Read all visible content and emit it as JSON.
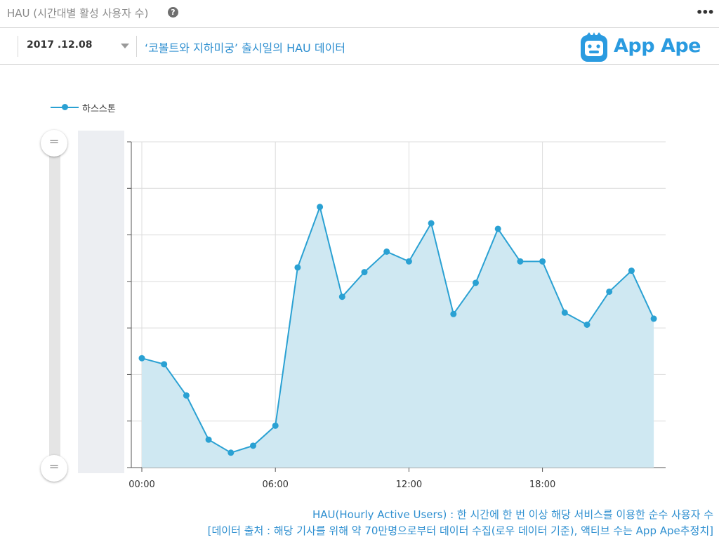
{
  "header": {
    "title": "HAU (시간대별 활성 사용자 수)",
    "help_icon": "question-icon",
    "more_icon": "more-dots-icon"
  },
  "toolbar": {
    "date_value": "2017 .12.08",
    "subtitle": "‘코볼트와 지하미궁’ 출시일의 HAU 데이터",
    "logo_text": "App Ape"
  },
  "colors": {
    "series": "#2aa1d3",
    "area": "#cfe8f2",
    "accent_text": "#2e8fd0",
    "logo": "#2a9be0"
  },
  "chart_data": {
    "type": "area",
    "legend": {
      "position": "top-left",
      "entries": [
        "하스스톤"
      ]
    },
    "x_ticks": [
      "00:00",
      "06:00",
      "12:00",
      "18:00"
    ],
    "x_range": [
      0,
      23.5
    ],
    "y_range": [
      0,
      7
    ],
    "y_tick_count": 7,
    "grid": true,
    "series": [
      {
        "name": "하스스톤",
        "x": [
          0,
          1,
          2,
          3,
          4,
          5,
          6,
          7,
          8,
          9,
          10,
          11,
          12,
          13,
          14,
          15,
          16,
          17,
          18,
          19,
          20,
          21,
          22,
          23
        ],
        "values": [
          2.35,
          2.22,
          1.55,
          0.6,
          0.32,
          0.47,
          0.9,
          4.3,
          5.6,
          3.67,
          4.2,
          4.64,
          4.43,
          5.25,
          3.3,
          3.97,
          5.13,
          4.43,
          4.43,
          3.33,
          3.07,
          3.78,
          4.23,
          3.2
        ]
      }
    ]
  },
  "footnotes": {
    "line1": "HAU(Hourly Active Users) : 한 시간에 한 번 이상 해당 서비스를 이용한 순수 사용자 수",
    "line2": "[데이터 출처 : 해당 기사를 위해 약 70만명으로부터 데이터 수집(로우 데이터 기준), 액티브 수는 App Ape추정치]"
  }
}
